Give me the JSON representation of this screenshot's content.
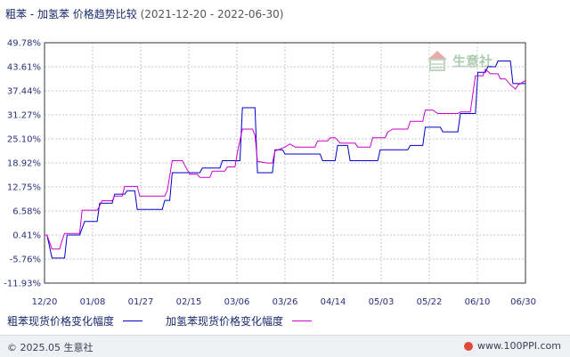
{
  "header": {
    "title": "粗苯 - 加氢苯 价格趋势比较",
    "range": "(2021-12-20 - 2022-06-30)"
  },
  "legend": {
    "items": [
      {
        "label": "粗苯现货价格变化幅度",
        "color": "#0000cc"
      },
      {
        "label": "加氢苯现货价格变化幅度",
        "color": "#cc00cc"
      }
    ]
  },
  "footer": {
    "copyright": "© 2025.05 生意社",
    "site": "www.100PPI.com"
  },
  "watermark": {
    "text": "生意社"
  },
  "chart_data": {
    "type": "line",
    "grid": true,
    "legend_position": "bottom",
    "ylim": [
      -11.93,
      49.78
    ],
    "yticks": [
      "49.78%",
      "43.61%",
      "37.44%",
      "31.27%",
      "25.10%",
      "18.92%",
      "12.75%",
      "6.58%",
      "0.41%",
      "-5.76%",
      "-11.93%"
    ],
    "xticks": [
      "12/20",
      "01/08",
      "01/27",
      "02/15",
      "03/06",
      "03/26",
      "04/14",
      "05/03",
      "05/22",
      "06/10",
      "06/30"
    ],
    "x_index_max": 192,
    "series": [
      {
        "name": "粗苯现货价格变化幅度",
        "color": "#0000cc",
        "points": [
          [
            0,
            0.41
          ],
          [
            1,
            0.41
          ],
          [
            3,
            -5.5
          ],
          [
            4,
            -5.5
          ],
          [
            8,
            -5.5
          ],
          [
            9,
            0.41
          ],
          [
            13,
            0.41
          ],
          [
            14,
            0.41
          ],
          [
            16,
            3.9
          ],
          [
            21,
            3.9
          ],
          [
            22,
            8.6
          ],
          [
            27,
            8.6
          ],
          [
            28,
            10.9
          ],
          [
            32,
            10.9
          ],
          [
            33,
            11.8
          ],
          [
            36,
            11.8
          ],
          [
            37,
            7.0
          ],
          [
            47,
            7.0
          ],
          [
            48,
            9.3
          ],
          [
            50,
            9.3
          ],
          [
            51,
            16.4
          ],
          [
            62,
            16.4
          ],
          [
            63,
            17.6
          ],
          [
            70,
            17.6
          ],
          [
            71,
            19.5
          ],
          [
            78,
            19.5
          ],
          [
            79,
            33.1
          ],
          [
            84,
            33.1
          ],
          [
            85,
            16.4
          ],
          [
            91,
            16.4
          ],
          [
            92,
            22.3
          ],
          [
            95,
            22.3
          ],
          [
            96,
            21.2
          ],
          [
            110,
            21.2
          ],
          [
            111,
            19.5
          ],
          [
            116,
            19.5
          ],
          [
            117,
            23.4
          ],
          [
            121,
            23.4
          ],
          [
            122,
            19.5
          ],
          [
            133,
            19.5
          ],
          [
            134,
            22.3
          ],
          [
            145,
            22.3
          ],
          [
            146,
            23.4
          ],
          [
            151,
            23.4
          ],
          [
            152,
            28.1
          ],
          [
            158,
            28.1
          ],
          [
            159,
            26.9
          ],
          [
            165,
            26.9
          ],
          [
            166,
            31.6
          ],
          [
            172,
            31.6
          ],
          [
            173,
            42.2
          ],
          [
            176,
            42.2
          ],
          [
            177,
            43.6
          ],
          [
            180,
            43.6
          ],
          [
            181,
            45.1
          ],
          [
            186,
            45.1
          ],
          [
            187,
            39.3
          ],
          [
            192,
            39.3
          ]
        ]
      },
      {
        "name": "加氢苯现货价格变化幅度",
        "color": "#cc00cc",
        "points": [
          [
            0,
            0.41
          ],
          [
            1,
            0.41
          ],
          [
            3,
            -3.2
          ],
          [
            4,
            -3.2
          ],
          [
            6,
            -3.2
          ],
          [
            7,
            -1.0
          ],
          [
            8,
            0.8
          ],
          [
            14,
            0.8
          ],
          [
            15,
            6.8
          ],
          [
            21,
            6.8
          ],
          [
            22,
            7.9
          ],
          [
            23,
            9.2
          ],
          [
            27,
            9.2
          ],
          [
            28,
            10.4
          ],
          [
            31,
            10.4
          ],
          [
            32,
            12.9
          ],
          [
            37,
            12.9
          ],
          [
            38,
            10.4
          ],
          [
            48,
            10.4
          ],
          [
            49,
            11.8
          ],
          [
            51,
            19.5
          ],
          [
            55,
            19.5
          ],
          [
            56,
            18.3
          ],
          [
            58,
            16.0
          ],
          [
            61,
            16.0
          ],
          [
            62,
            15.2
          ],
          [
            66,
            15.2
          ],
          [
            67,
            16.8
          ],
          [
            72,
            16.8
          ],
          [
            73,
            17.9
          ],
          [
            76,
            17.9
          ],
          [
            77,
            21.7
          ],
          [
            79,
            27.6
          ],
          [
            83,
            27.6
          ],
          [
            84,
            26.0
          ],
          [
            85,
            19.3
          ],
          [
            89,
            18.9
          ],
          [
            91,
            18.9
          ],
          [
            92,
            22.0
          ],
          [
            96,
            23.0
          ],
          [
            98,
            23.8
          ],
          [
            100,
            23.0
          ],
          [
            108,
            23.0
          ],
          [
            109,
            24.6
          ],
          [
            113,
            24.6
          ],
          [
            114,
            25.4
          ],
          [
            116,
            25.4
          ],
          [
            118,
            24.0
          ],
          [
            124,
            24.0
          ],
          [
            125,
            23.0
          ],
          [
            130,
            23.0
          ],
          [
            131,
            25.4
          ],
          [
            136,
            25.4
          ],
          [
            137,
            26.8
          ],
          [
            139,
            27.6
          ],
          [
            145,
            27.6
          ],
          [
            146,
            29.6
          ],
          [
            151,
            29.6
          ],
          [
            152,
            32.5
          ],
          [
            155,
            32.5
          ],
          [
            157,
            31.6
          ],
          [
            165,
            31.6
          ],
          [
            166,
            32.0
          ],
          [
            170,
            32.0
          ],
          [
            172,
            41.3
          ],
          [
            175,
            41.3
          ],
          [
            176,
            43.0
          ],
          [
            178,
            41.8
          ],
          [
            181,
            41.8
          ],
          [
            182,
            40.5
          ],
          [
            184,
            40.5
          ],
          [
            186,
            39.0
          ],
          [
            188,
            37.9
          ],
          [
            189,
            39.0
          ],
          [
            190,
            39.3
          ],
          [
            192,
            40.1
          ]
        ]
      }
    ]
  }
}
